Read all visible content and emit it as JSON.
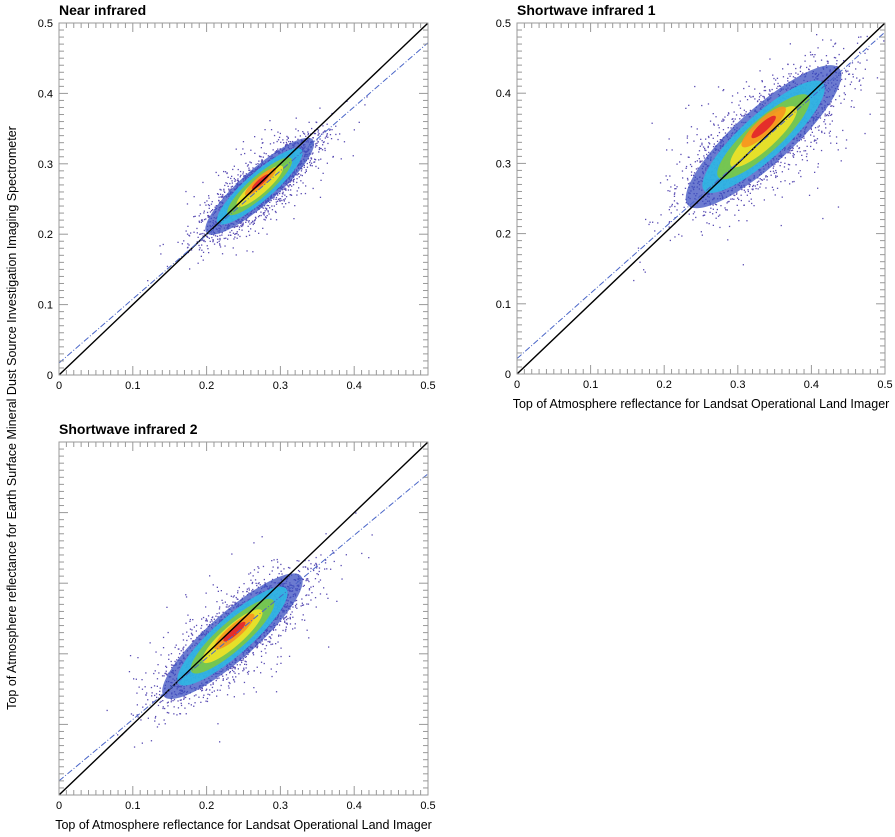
{
  "figure": {
    "ylabel": "Top of Atmosphere reflectance for Earth Surface Mineral Dust Source Investigation Imaging Spectrometer",
    "colors": {
      "points": "#5a4db3",
      "one_to_one": "#000000",
      "regression": "#4a66c8",
      "density": [
        "#3b4fc0",
        "#2fb8e3",
        "#7cc843",
        "#f2e226",
        "#f7931e",
        "#e3222b"
      ]
    }
  },
  "chart_data": [
    {
      "type": "scatter",
      "title": "Near infrared",
      "xlabel": "",
      "xlim": [
        0,
        0.5
      ],
      "ylim": [
        0,
        0.5
      ],
      "xticks": [
        "0",
        "0.1",
        "0.2",
        "0.3",
        "0.4",
        "0.5"
      ],
      "yticks": [
        "0",
        "0.1",
        "0.2",
        "0.3",
        "0.4",
        "0.5"
      ],
      "one_to_one_line": {
        "intercept": 0,
        "slope": 1
      },
      "regression_line": {
        "intercept": 0.017,
        "slope": 0.91
      },
      "density_peak": [
        0.28,
        0.275
      ],
      "data_extent": {
        "x": [
          0.08,
          0.41
        ],
        "y": [
          0.05,
          0.38
        ]
      },
      "cloud": {
        "cx": 0.272,
        "cy": 0.268,
        "slope": 0.92,
        "major": 0.045,
        "minor": 0.012
      }
    },
    {
      "type": "scatter",
      "title": "Shortwave infrared 1",
      "xlabel": "Top of Atmosphere reflectance for Landsat Operational Land Imager",
      "xlim": [
        0,
        0.5
      ],
      "ylim": [
        0,
        0.5
      ],
      "xticks": [
        "0",
        "0.1",
        "0.2",
        "0.3",
        "0.4",
        "0.5"
      ],
      "yticks": [
        "0",
        "0.1",
        "0.2",
        "0.3",
        "0.4",
        "0.5"
      ],
      "one_to_one_line": {
        "intercept": 0,
        "slope": 1
      },
      "regression_line": {
        "intercept": 0.022,
        "slope": 0.93
      },
      "density_peak": [
        0.35,
        0.355
      ],
      "data_extent": {
        "x": [
          0.05,
          0.48
        ],
        "y": [
          0.04,
          0.46
        ]
      },
      "cloud": {
        "cx": 0.335,
        "cy": 0.338,
        "slope": 0.95,
        "major": 0.065,
        "minor": 0.019
      }
    },
    {
      "type": "scatter",
      "title": "Shortwave infrared 2",
      "xlabel": "Top of Atmosphere reflectance for Landsat Operational Land Imager",
      "xlim": [
        0,
        0.5
      ],
      "ylim": [
        0,
        0.5
      ],
      "xticks": [
        "0",
        "0.1",
        "0.2",
        "0.3",
        "0.4",
        "0.5"
      ],
      "yticks": [],
      "one_to_one_line": {
        "intercept": 0,
        "slope": 1
      },
      "regression_line": {
        "intercept": 0.02,
        "slope": 0.87
      },
      "density_peak": [
        0.245,
        0.23
      ],
      "data_extent": {
        "x": [
          0.04,
          0.43
        ],
        "y": [
          0.03,
          0.38
        ]
      },
      "cloud": {
        "cx": 0.235,
        "cy": 0.225,
        "slope": 0.92,
        "major": 0.058,
        "minor": 0.016
      }
    }
  ]
}
